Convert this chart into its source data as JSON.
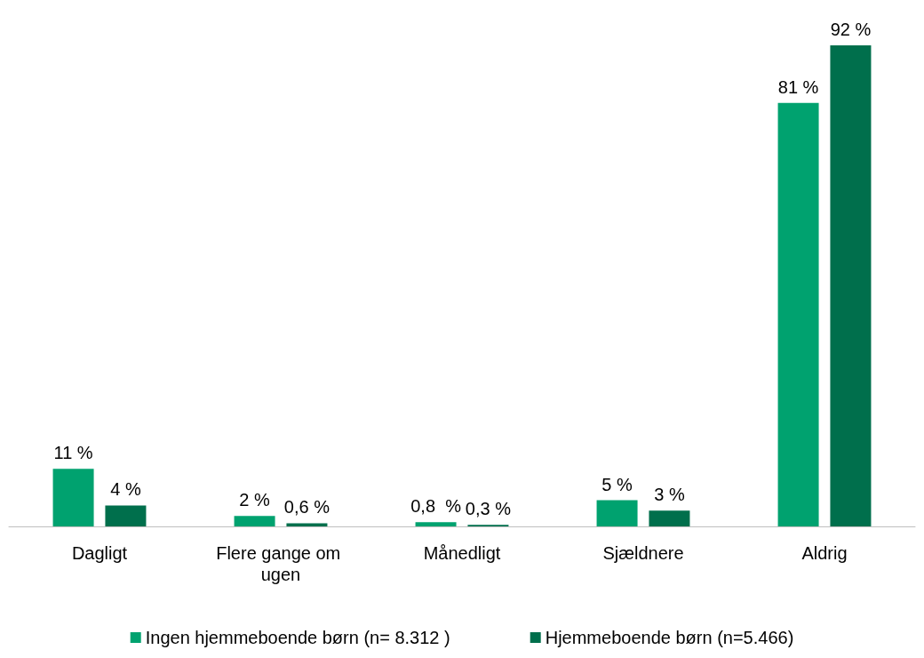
{
  "chart_data": {
    "type": "bar",
    "categories": [
      "Dagligt",
      "Flere gange om ugen",
      "Månedligt",
      "Sjældnere",
      "Aldrig"
    ],
    "series": [
      {
        "name": "Ingen hjemmeboende børn (n= 8.312 )",
        "color": "#00a26f",
        "values": [
          11,
          2,
          0.8,
          5,
          81
        ],
        "value_labels": [
          "11 %",
          "2 %",
          "0,8  %",
          "5 %",
          "81 %"
        ]
      },
      {
        "name": "Hjemmeboende børn (n=5.466)",
        "color": "#006f4c",
        "values": [
          4,
          0.6,
          0.3,
          3,
          92
        ],
        "value_labels": [
          "4 %",
          "0,6 %",
          "0,3 %",
          "3 %",
          "92 %"
        ]
      }
    ],
    "legend": "bottom",
    "grid": false
  }
}
